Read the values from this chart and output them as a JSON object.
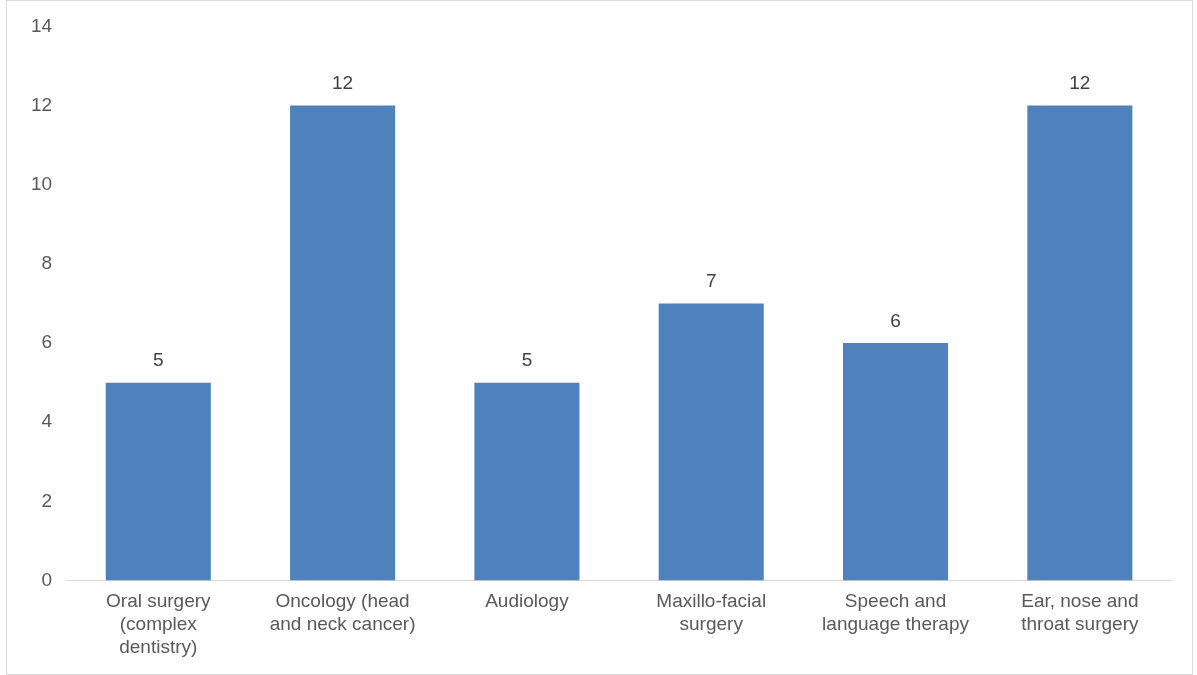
{
  "chart_data": {
    "type": "bar",
    "categories": [
      "Oral surgery (complex dentistry)",
      "Oncology (head and neck cancer)",
      "Audiology",
      "Maxillo-facial surgery",
      "Speech and language therapy",
      "Ear, nose and throat surgery"
    ],
    "values": [
      5,
      12,
      5,
      7,
      6,
      12
    ],
    "color": "#4f81bd",
    "ylim": [
      0,
      14
    ],
    "yticks": [
      0,
      2,
      4,
      6,
      8,
      10,
      12,
      14
    ],
    "grid": false,
    "legend": false,
    "data_labels": true
  }
}
